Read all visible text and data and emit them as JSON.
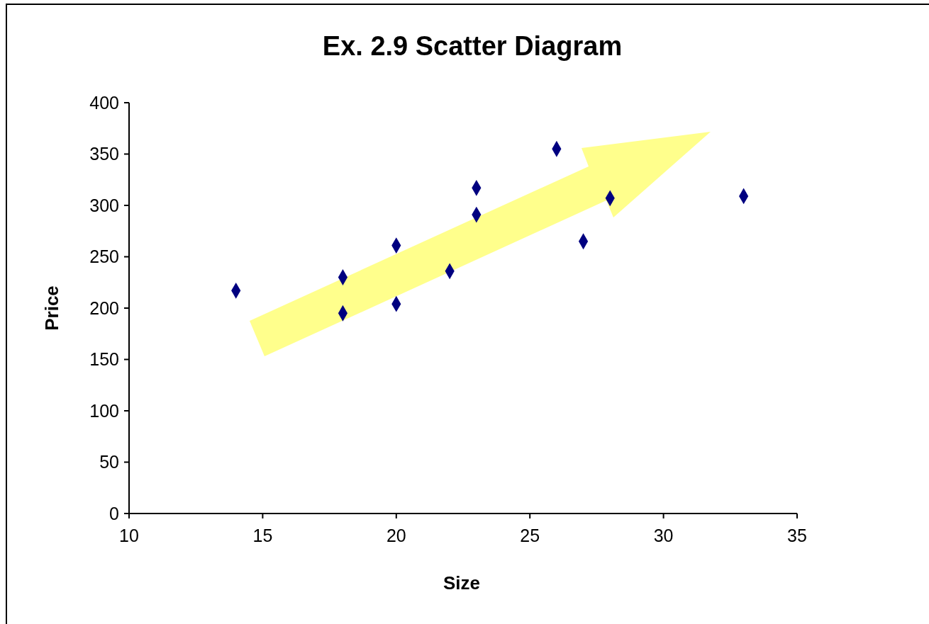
{
  "chart_data": {
    "type": "scatter",
    "title": "Ex. 2.9 Scatter Diagram",
    "xlabel": "Size",
    "ylabel": "Price",
    "x": [
      14,
      18,
      18,
      20,
      20,
      22,
      23,
      23,
      26,
      27,
      28,
      33
    ],
    "values": [
      217,
      230,
      195,
      261,
      204,
      236,
      317,
      291,
      355,
      265,
      307,
      309
    ],
    "color": "#000080",
    "marker": "diamond",
    "xlim": [
      10,
      35
    ],
    "xticks": [
      10,
      15,
      20,
      25,
      30,
      35
    ],
    "ylim": [
      0,
      400
    ],
    "yticks": [
      0,
      50,
      100,
      150,
      200,
      250,
      300,
      350,
      400
    ]
  }
}
